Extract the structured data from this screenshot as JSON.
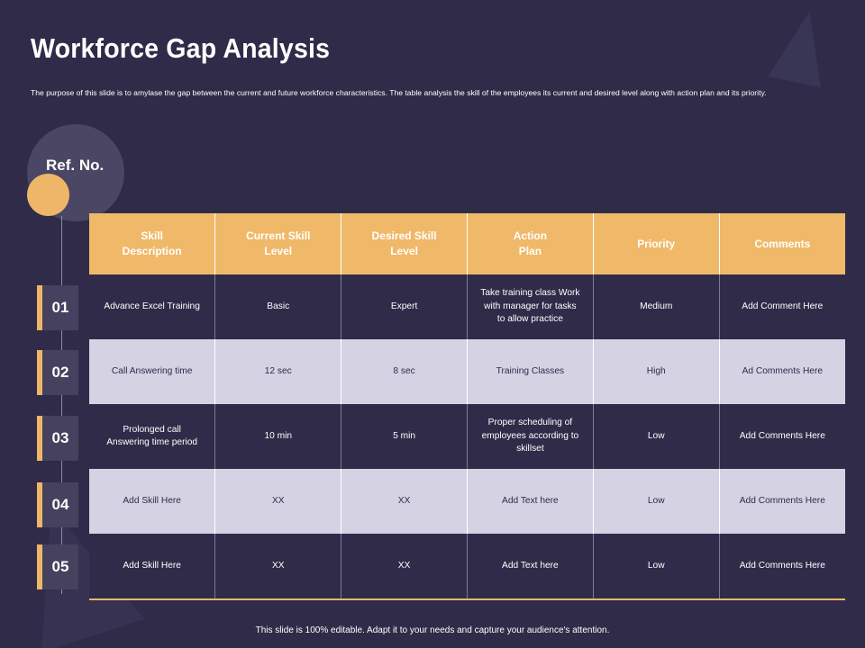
{
  "slide": {
    "title": "Workforce Gap Analysis",
    "subtitle": "The purpose of this slide is to amylase the gap between the current and future workforce characteristics. The table analysis the skill of the employees its current and desired level along with action plan and its priority.",
    "ref_label": "Ref. No.",
    "footer": "This slide is 100% editable.  Adapt it to your needs and capture your audience's attention."
  },
  "ref_numbers": [
    "01",
    "02",
    "03",
    "04",
    "05"
  ],
  "table": {
    "headers": [
      "Skill\nDescription",
      "Current Skill\nLevel",
      "Desired Skill\nLevel",
      "Action\nPlan",
      "Priority",
      "Comments"
    ],
    "rows": [
      [
        "Advance Excel Training",
        "Basic",
        "Expert",
        "Take training class Work with manager for tasks to allow practice",
        "Medium",
        "Add Comment Here"
      ],
      [
        "Call Answering time",
        "12 sec",
        "8 sec",
        "Training Classes",
        "High",
        "Ad Comments Here"
      ],
      [
        "Prolonged call Answering time period",
        "10 min",
        "5 min",
        "Proper scheduling of employees according to skillset",
        "Low",
        "Add Comments Here"
      ],
      [
        "Add Skill Here",
        "XX",
        "XX",
        "Add Text here",
        "Low",
        "Add Comments Here"
      ],
      [
        "Add Skill Here",
        "XX",
        "XX",
        "Add Text here",
        "Low",
        "Add Comments Here"
      ]
    ]
  },
  "colors": {
    "background": "#302b48",
    "accent": "#eeb668",
    "light_row": "#d5d2e4"
  }
}
